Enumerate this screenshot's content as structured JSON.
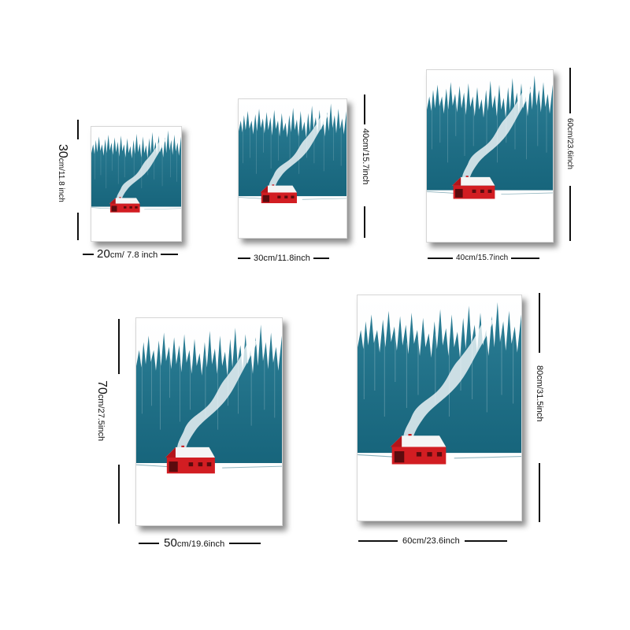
{
  "sizes": {
    "s20x30": {
      "width_label": "20",
      "width_label_rest": "cm/ 7.8 inch",
      "height_label": "30",
      "height_label_rest": "cm/11.8 inch"
    },
    "s30x40": {
      "width_label": "30cm/11.8inch",
      "height_label": "40cm/15.7inch"
    },
    "s40x60": {
      "width_label": "40cm/15.7inch",
      "height_label": "60cm/23.6inch"
    },
    "s50x70": {
      "width_label": "50",
      "width_label_rest": "cm/19.6inch",
      "height_label": "70",
      "height_label_rest": "cm/27.5inch"
    },
    "s60x80": {
      "width_label": "60cm/23.6inch",
      "height_label": "80cm/31.5inch"
    }
  },
  "colors": {
    "forest_teal": "#1f6f86",
    "forest_dark": "#175a6e",
    "snow": "#ffffff",
    "cabin_red": "#d21d22",
    "cabin_roof_snow": "#f4f4f4",
    "line": "#111111"
  }
}
